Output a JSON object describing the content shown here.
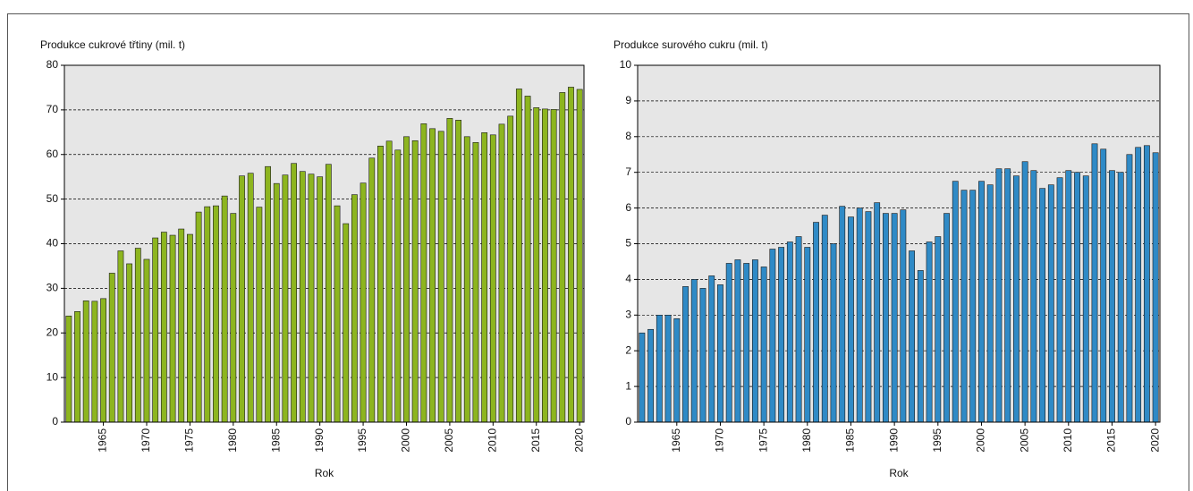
{
  "chart_data": [
    {
      "type": "bar",
      "title": "Produkce cukrové třtiny (mil. t)",
      "x_label": "Rok",
      "color": "#8db51f",
      "categories": [
        null,
        null,
        null,
        null,
        "1965",
        null,
        null,
        null,
        null,
        "1970",
        null,
        null,
        null,
        null,
        "1975",
        null,
        null,
        null,
        null,
        "1980",
        null,
        null,
        null,
        null,
        "1985",
        null,
        null,
        null,
        null,
        "1990",
        null,
        null,
        null,
        null,
        "1995",
        null,
        null,
        null,
        null,
        "2000",
        null,
        null,
        null,
        null,
        "2005",
        null,
        null,
        null,
        null,
        "2010",
        null,
        null,
        null,
        null,
        "2015",
        null,
        null,
        null,
        null,
        "2020"
      ],
      "values": [
        23.8,
        24.8,
        27.2,
        27.1,
        27.7,
        33.4,
        38.4,
        35.5,
        39.0,
        36.5,
        41.3,
        42.6,
        41.9,
        43.3,
        42.1,
        47.1,
        48.3,
        48.5,
        50.7,
        46.8,
        55.2,
        55.8,
        48.2,
        57.3,
        53.5,
        55.4,
        58.0,
        56.2,
        55.6,
        55.0,
        57.8,
        48.5,
        44.5,
        51.0,
        53.6,
        59.2,
        61.9,
        63.0,
        61.0,
        64.0,
        63.1,
        66.9,
        65.8,
        65.2,
        68.1,
        67.7,
        64.0,
        62.7,
        64.9,
        64.4,
        66.8,
        68.6,
        74.7,
        73.1,
        70.5,
        70.2,
        70.1,
        73.9,
        75.1,
        74.6
      ],
      "ylim": [
        0,
        80
      ],
      "yticks": [
        0,
        10,
        20,
        30,
        40,
        50,
        60,
        70,
        80
      ],
      "grid": true
    },
    {
      "type": "bar",
      "title": "Produkce surového cukru (mil. t)",
      "x_label": "Rok",
      "color": "#2f8ac6",
      "categories": [
        null,
        null,
        null,
        null,
        "1965",
        null,
        null,
        null,
        null,
        "1970",
        null,
        null,
        null,
        null,
        "1975",
        null,
        null,
        null,
        null,
        "1980",
        null,
        null,
        null,
        null,
        "1985",
        null,
        null,
        null,
        null,
        "1990",
        null,
        null,
        null,
        null,
        "1995",
        null,
        null,
        null,
        null,
        "2000",
        null,
        null,
        null,
        null,
        "2005",
        null,
        null,
        null,
        null,
        "2010",
        null,
        null,
        null,
        null,
        "2015",
        null,
        null,
        null,
        null,
        "2020"
      ],
      "values": [
        2.5,
        2.6,
        3.0,
        3.0,
        2.9,
        3.8,
        4.0,
        3.75,
        4.1,
        3.85,
        4.45,
        4.55,
        4.45,
        4.55,
        4.35,
        4.85,
        4.9,
        5.05,
        5.2,
        4.9,
        5.6,
        5.8,
        5.0,
        6.05,
        5.75,
        6.0,
        5.9,
        6.15,
        5.85,
        5.85,
        5.95,
        4.8,
        4.25,
        5.05,
        5.2,
        5.85,
        6.75,
        6.5,
        6.5,
        6.75,
        6.65,
        7.1,
        7.1,
        6.9,
        7.3,
        7.05,
        6.55,
        6.65,
        6.85,
        7.05,
        7.0,
        6.9,
        7.8,
        7.65,
        7.05,
        7.0,
        7.5,
        7.7,
        7.75,
        7.55
      ],
      "ylim": [
        0,
        10
      ],
      "yticks": [
        0,
        1,
        2,
        3,
        4,
        5,
        6,
        7,
        8,
        9,
        10
      ],
      "grid": true
    }
  ]
}
